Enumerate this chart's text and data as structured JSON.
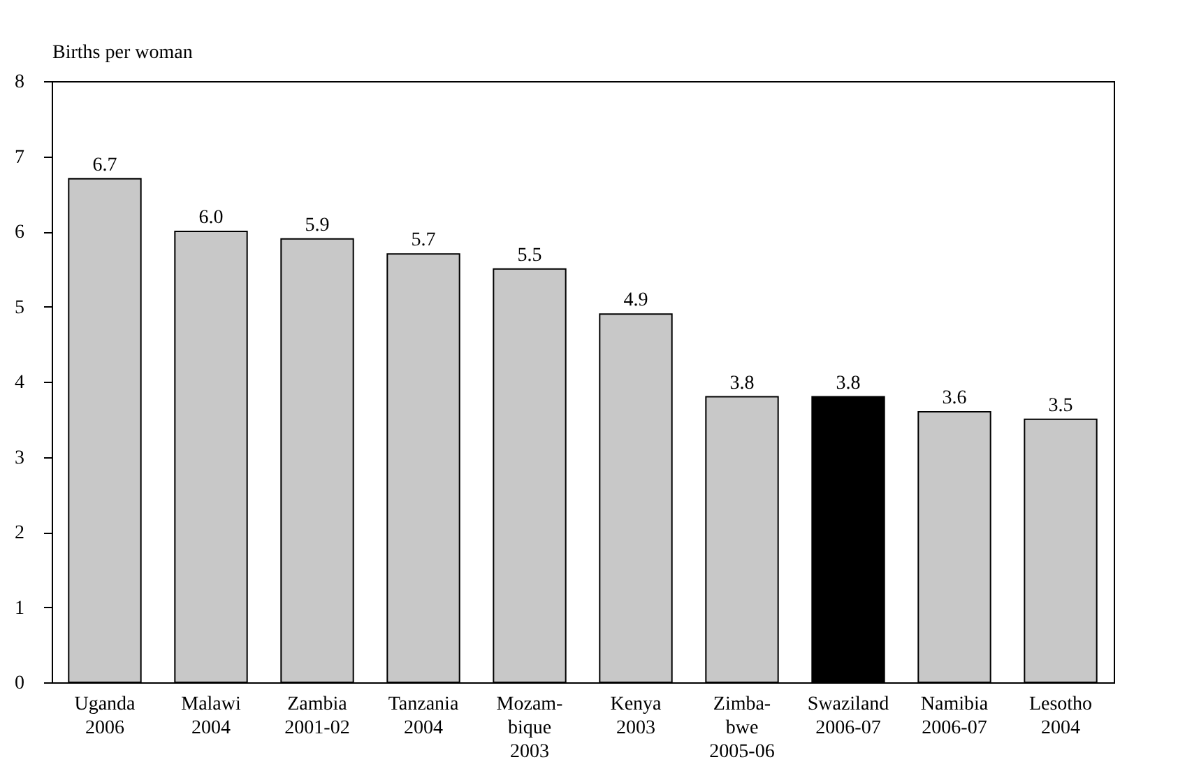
{
  "chart_data": {
    "type": "bar",
    "ylabel": "Births per woman",
    "categories": [
      "Uganda\n2006",
      "Malawi\n2004",
      "Zambia\n2001-02",
      "Tanzania\n2004",
      "Mozam-\nbique\n2003",
      "Kenya\n2003",
      "Zimba-\nbwe\n2005-06",
      "Swaziland\n2006-07",
      "Namibia\n2006-07",
      "Lesotho\n2004"
    ],
    "values": [
      6.7,
      6.0,
      5.9,
      5.7,
      5.5,
      4.9,
      3.8,
      3.8,
      3.6,
      3.5
    ],
    "colors": [
      "#c8c8c8",
      "#c8c8c8",
      "#c8c8c8",
      "#c8c8c8",
      "#c8c8c8",
      "#c8c8c8",
      "#c8c8c8",
      "#000000",
      "#c8c8c8",
      "#c8c8c8"
    ],
    "ylim": [
      0,
      8
    ],
    "yticks": [
      0,
      1,
      2,
      3,
      4,
      5,
      6,
      7,
      8
    ],
    "value_labels": [
      "6.7",
      "6.0",
      "5.9",
      "5.7",
      "5.5",
      "4.9",
      "3.8",
      "3.8",
      "3.6",
      "3.5"
    ],
    "grid": false
  }
}
